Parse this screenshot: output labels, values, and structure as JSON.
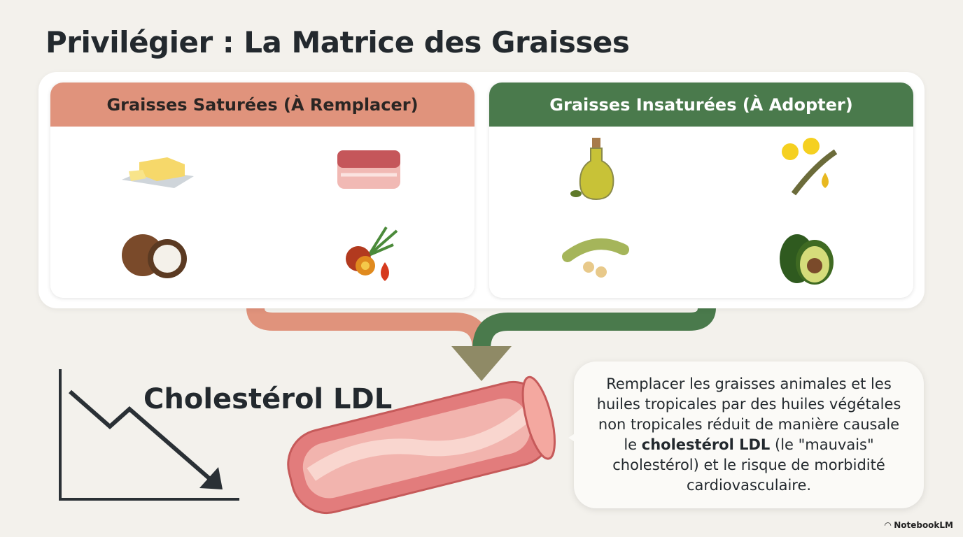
{
  "title": "Privilégier : La Matrice des Graisses",
  "saturated": {
    "header": "Graisses Saturées (À Remplacer)",
    "color": "#e0937c",
    "items": [
      "butter-icon",
      "meat-icon",
      "coconut-icon",
      "palm-fruit-icon"
    ]
  },
  "unsaturated": {
    "header": "Graisses Insaturées (À Adopter)",
    "color": "#4a7a4c",
    "items": [
      "olive-oil-icon",
      "rapeseed-icon",
      "soybean-icon",
      "avocado-icon"
    ]
  },
  "ldl_label": "Cholestérol LDL",
  "bubble": {
    "before": "Remplacer les graisses animales et les huiles tropicales par des huiles végétales non tropicales réduit de manière causale le ",
    "bold": "cholestérol LDL",
    "after": " (le \"mauvais\" cholestérol) et le risque de morbidité cardiovasculaire."
  },
  "brand": "NotebookLM"
}
